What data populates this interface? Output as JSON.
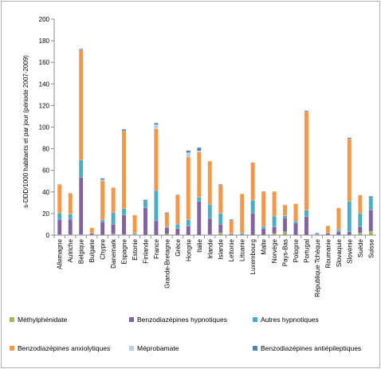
{
  "chart_data": {
    "type": "bar",
    "stacked": true,
    "ylabel": "s-DDD/1000 habitants et par jour (période 2007-2009)",
    "xlabel": "",
    "ylim": [
      0,
      200
    ],
    "yticks": [
      0,
      20,
      40,
      60,
      80,
      100,
      120,
      140,
      160,
      180,
      200
    ],
    "grid": false,
    "legend_position": "bottom",
    "categories": [
      "Allemagne",
      "Autriche",
      "Belgique",
      "Bulgarie",
      "Chypre",
      "Danemark",
      "Espagne",
      "Estonie",
      "Finlande",
      "France",
      "Grande-Bretagne",
      "Grèce",
      "Hongrie",
      "Italie",
      "Irlande",
      "Islande",
      "Lettonie",
      "Lituanie",
      "Luxembourg",
      "Malte",
      "Norvège",
      "Pays-Bas",
      "Pologne",
      "Portugal",
      "République Tchèque",
      "Roumanie",
      "Slovaquie",
      "Slovénie",
      "Suède",
      "Suisse"
    ],
    "series": [
      {
        "name": "Méthylphénidate",
        "color": "#9bbb59",
        "values": [
          0.5,
          0.5,
          0.5,
          0.2,
          0.2,
          1,
          0.5,
          0.1,
          0.3,
          0.3,
          1,
          0.1,
          0.3,
          0.1,
          0.5,
          2,
          0.1,
          0.1,
          0.3,
          0.1,
          1.5,
          3,
          0.1,
          0.1,
          0.2,
          0.1,
          0.1,
          0.2,
          2,
          3.5
        ]
      },
      {
        "name": "Benzodiazépines hypnotiques",
        "color": "#8064a2",
        "values": [
          14,
          14,
          53,
          1.5,
          12,
          9,
          18,
          0.5,
          25,
          13,
          6,
          6,
          8,
          31,
          15,
          8,
          1,
          1,
          20,
          6,
          6,
          13,
          11,
          17,
          0.5,
          1.5,
          3,
          3,
          6,
          20
        ]
      },
      {
        "name": "Autres hypnotiques",
        "color": "#4bacc6",
        "values": [
          6,
          5,
          16,
          0,
          2,
          11,
          6,
          1,
          6,
          28,
          1,
          4,
          6,
          4,
          13,
          10,
          0.5,
          1,
          12,
          2,
          10,
          2,
          2,
          6,
          1,
          0,
          2,
          28,
          12,
          11
        ]
      },
      {
        "name": "Benzodiazépines anxiolytiques",
        "color": "#f79646",
        "values": [
          26,
          19,
          102,
          5,
          36,
          23,
          72,
          17,
          0,
          57,
          12,
          27,
          58,
          42,
          40,
          26,
          12,
          36,
          35,
          32,
          23,
          10,
          16,
          91,
          0,
          7,
          20,
          58,
          17,
          0
        ]
      },
      {
        "name": "Méprobamate",
        "color": "#b9cde5",
        "values": [
          0,
          0,
          0,
          0,
          1,
          0,
          0,
          0,
          0,
          4,
          0,
          0,
          4,
          1,
          0,
          0,
          0,
          0,
          0,
          0,
          0,
          0,
          0,
          0,
          0,
          0,
          0,
          0,
          0,
          0
        ]
      },
      {
        "name": "Benzodiazépines antiépileptiques",
        "color": "#4f81bd",
        "values": [
          0.5,
          0.5,
          1,
          0,
          1.5,
          0,
          1.5,
          0,
          1.5,
          1.5,
          1,
          0.5,
          2,
          3,
          0,
          1,
          1,
          0,
          0,
          0.5,
          0,
          0,
          0,
          1,
          0.5,
          0,
          0,
          1,
          0,
          1.5
        ]
      }
    ]
  }
}
